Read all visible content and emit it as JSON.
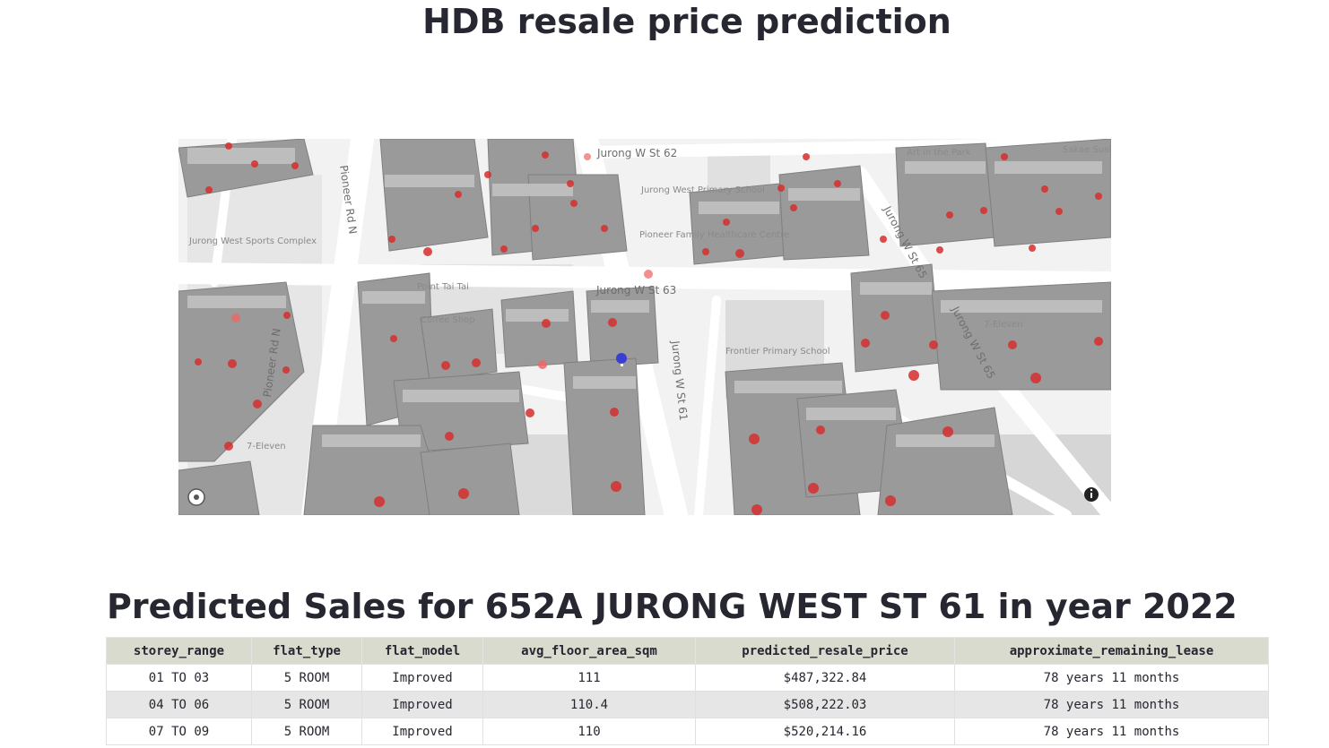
{
  "page": {
    "title": "HDB resale price prediction"
  },
  "map": {
    "icons": {
      "compass": "compass-icon",
      "info": "info-icon"
    },
    "colors": {
      "building": "#9a9a9a",
      "building_top": "#bdbdbd",
      "point": "#d62e2e",
      "selected_point": "#3a3fd1",
      "road": "#ffffff"
    },
    "labels": {
      "jurong_w_st62": "Jurong W St 62",
      "pioneer_rd_n_top": "Pioneer Rd N",
      "pioneer_rd_n_bottom": "Pioneer Rd N",
      "jurong_w_st63": "Jurong W St 63",
      "jurong_w_st61": "Jurong W St 61",
      "jurong_w_st65_a": "Jurong W St 65",
      "jurong_w_st65_b": "Jurong W St 65",
      "jurong_west_sports": "Jurong West Sports Complex",
      "jurong_west_primary": "Jurong West Primary School",
      "pioneer_family": "Pioneer Family Healthcare Centre",
      "frontier_primary": "Frontier Primary School",
      "coffee_shop": "Coffee Shop",
      "seven_eleven_a": "7-Eleven",
      "seven_eleven_b": "7-Eleven",
      "art_in_the_park": "Art in the Park",
      "sakae_sushi": "Sakae Sushi",
      "punggol": "Point Tai Tai"
    }
  },
  "section": {
    "heading": "Predicted Sales for 652A JURONG WEST ST 61 in year 2022"
  },
  "table": {
    "headers": [
      "storey_range",
      "flat_type",
      "flat_model",
      "avg_floor_area_sqm",
      "predicted_resale_price",
      "approximate_remaining_lease"
    ],
    "rows": [
      [
        "01 TO 03",
        "5 ROOM",
        "Improved",
        "111",
        "$487,322.84",
        "78 years 11 months"
      ],
      [
        "04 TO 06",
        "5 ROOM",
        "Improved",
        "110.4",
        "$508,222.03",
        "78 years 11 months"
      ],
      [
        "07 TO 09",
        "5 ROOM",
        "Improved",
        "110",
        "$520,214.16",
        "78 years 11 months"
      ]
    ]
  }
}
